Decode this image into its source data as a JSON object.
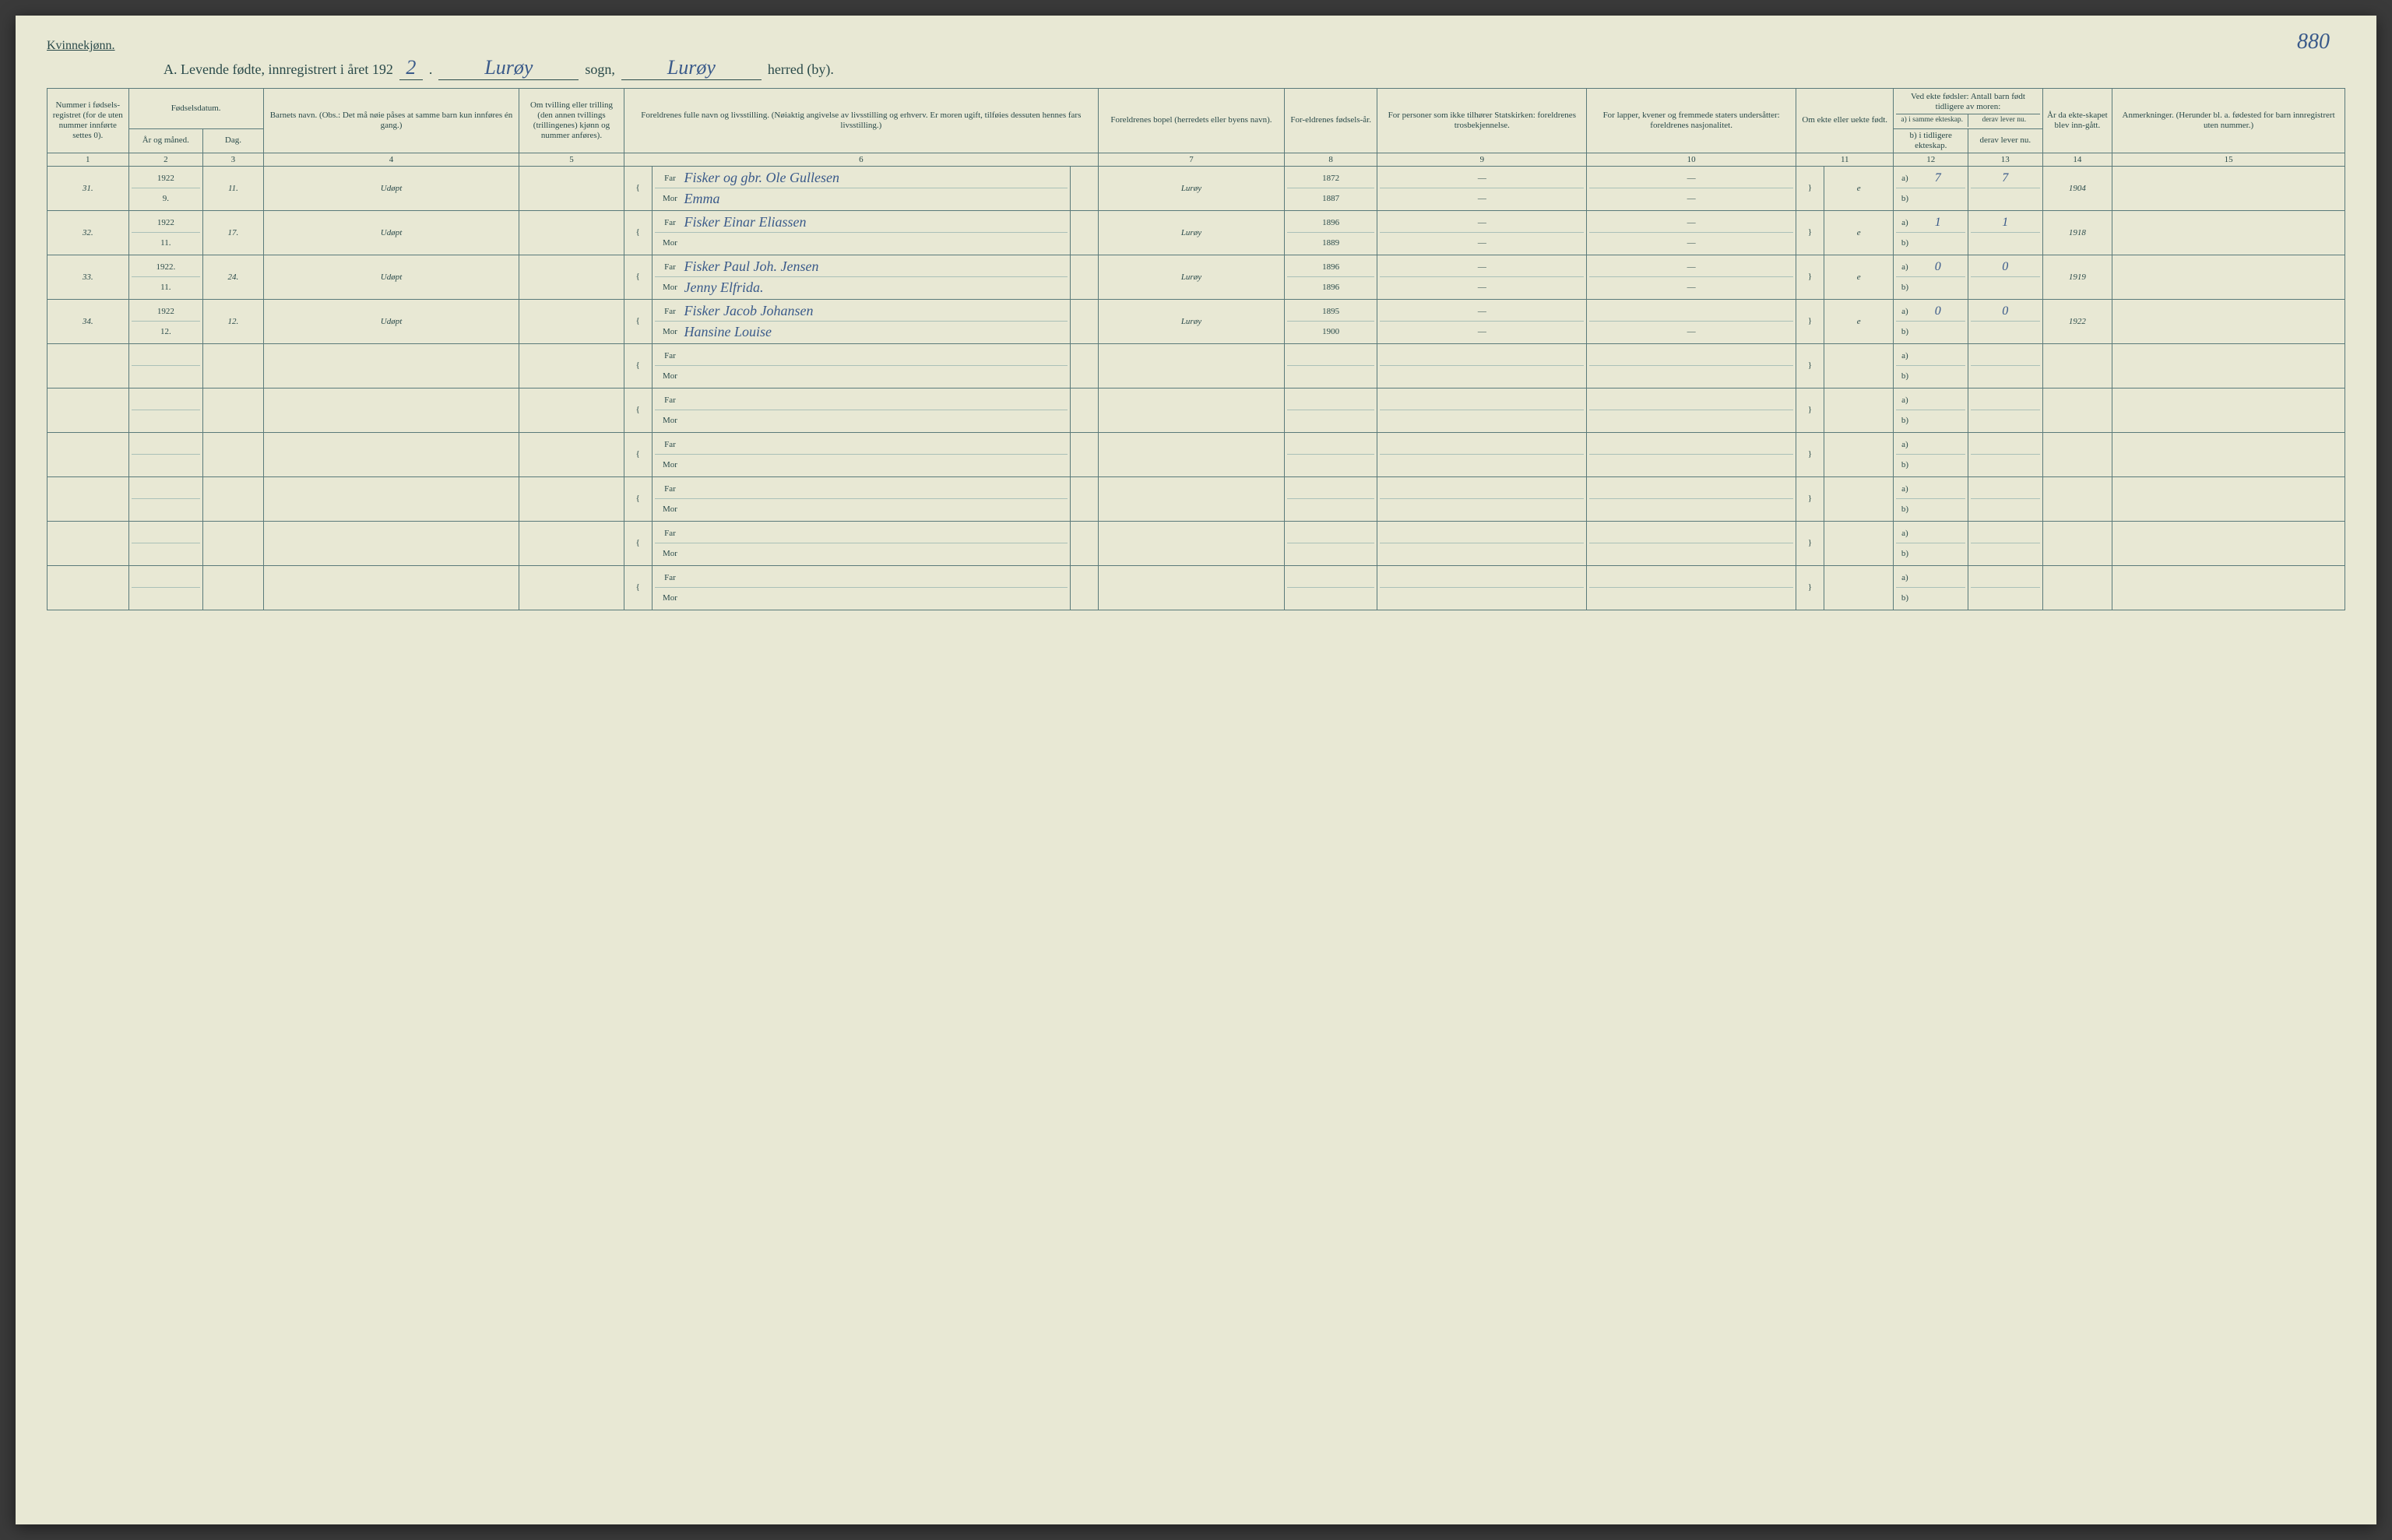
{
  "page_number": "880",
  "gender": "Kvinnekjønn.",
  "title": {
    "prefix": "A.    Levende fødte, innregistrert i året 192",
    "year_digit": "2",
    "sogn": "Lurøy",
    "sogn_label": "sogn,",
    "herred": "Lurøy",
    "herred_label": "herred (by)."
  },
  "headers": {
    "c1": "Nummer i fødsels-registret (for de uten nummer innførte settes 0).",
    "c2_top": "Fødselsdatum.",
    "c2a": "År og måned.",
    "c2b": "Dag.",
    "c4": "Barnets navn.\n(Obs.: Det må nøie påses at samme barn kun innføres én gang.)",
    "c5": "Om tvilling eller trilling (den annen tvillings (trillingenes) kjønn og nummer anføres).",
    "c6": "Foreldrenes fulle navn og livsstilling.\n(Nøiaktig angivelse av livsstilling og erhverv. Er moren ugift, tilføies dessuten hennes fars livsstilling.)",
    "c7": "Foreldrenes bopel (herredets eller byens navn).",
    "c8": "For-eldrenes fødsels-år.",
    "c9": "For personer som ikke tilhører Statskirken: foreldrenes trosbekjennelse.",
    "c10": "For lapper, kvener og fremmede staters undersåtter: foreldrenes nasjonalitet.",
    "c11": "Om ekte eller uekte født.",
    "c12_top": "Ved ekte fødsler:\nAntall barn født tidligere av moren:",
    "c12a": "a) i samme ekteskap.",
    "c12b": "b) i tidligere ekteskap.",
    "c13a": "derav lever nu.",
    "c13b": "derav lever nu.",
    "c14": "År da ekte-skapet blev inn-gått.",
    "c15": "Anmerkninger.\n(Herunder bl. a. fødested for barn innregistrert uten nummer.)",
    "far": "Far",
    "mor": "Mor"
  },
  "col_nums": [
    "1",
    "2",
    "3",
    "4",
    "5",
    "6",
    "7",
    "8",
    "9",
    "10",
    "11",
    "12",
    "13",
    "14",
    "15"
  ],
  "rows": [
    {
      "num": "31.",
      "year": "1922",
      "month": "9.",
      "day": "11.",
      "name": "Udøpt",
      "far": "Fisker og gbr. Ole Gullesen",
      "mor": "Emma",
      "bopel": "Lurøy",
      "far_year": "1872",
      "mor_year": "1887",
      "c9f": "—",
      "c9m": "—",
      "c10f": "—",
      "c10m": "—",
      "ekte": "e",
      "a_same": "7",
      "a_lever": "7",
      "b_tidl": "",
      "b_lever": "",
      "ekteskap_aar": "1904"
    },
    {
      "num": "32.",
      "year": "1922",
      "month": "11.",
      "day": "17.",
      "name": "Udøpt",
      "far": "Fisker Einar Eliassen",
      "mor": "",
      "bopel": "Lurøy",
      "far_year": "1896",
      "mor_year": "1889",
      "c9f": "—",
      "c9m": "—",
      "c10f": "—",
      "c10m": "—",
      "ekte": "e",
      "a_same": "1",
      "a_lever": "1",
      "b_tidl": "",
      "b_lever": "",
      "ekteskap_aar": "1918"
    },
    {
      "num": "33.",
      "year": "1922.",
      "month": "11.",
      "day": "24.",
      "name": "Udøpt",
      "far": "Fisker Paul Joh. Jensen",
      "mor": "Jenny Elfrida.",
      "bopel": "Lurøy",
      "far_year": "1896",
      "mor_year": "1896",
      "c9f": "—",
      "c9m": "—",
      "c10f": "—",
      "c10m": "—",
      "ekte": "e",
      "a_same": "0",
      "a_lever": "0",
      "b_tidl": "",
      "b_lever": "",
      "ekteskap_aar": "1919"
    },
    {
      "num": "34.",
      "year": "1922",
      "month": "12.",
      "day": "12.",
      "name": "Udøpt",
      "far": "Fisker Jacob Johansen",
      "mor": "Hansine Louise",
      "bopel": "Lurøy",
      "far_year": "1895",
      "mor_year": "1900",
      "c9f": "—",
      "c9m": "—",
      "c10f": "",
      "c10m": "—",
      "ekte": "e",
      "a_same": "0",
      "a_lever": "0",
      "b_tidl": "",
      "b_lever": "",
      "ekteskap_aar": "1922"
    },
    {
      "blank": true
    },
    {
      "blank": true
    },
    {
      "blank": true
    },
    {
      "blank": true
    },
    {
      "blank": true
    },
    {
      "blank": true
    }
  ]
}
